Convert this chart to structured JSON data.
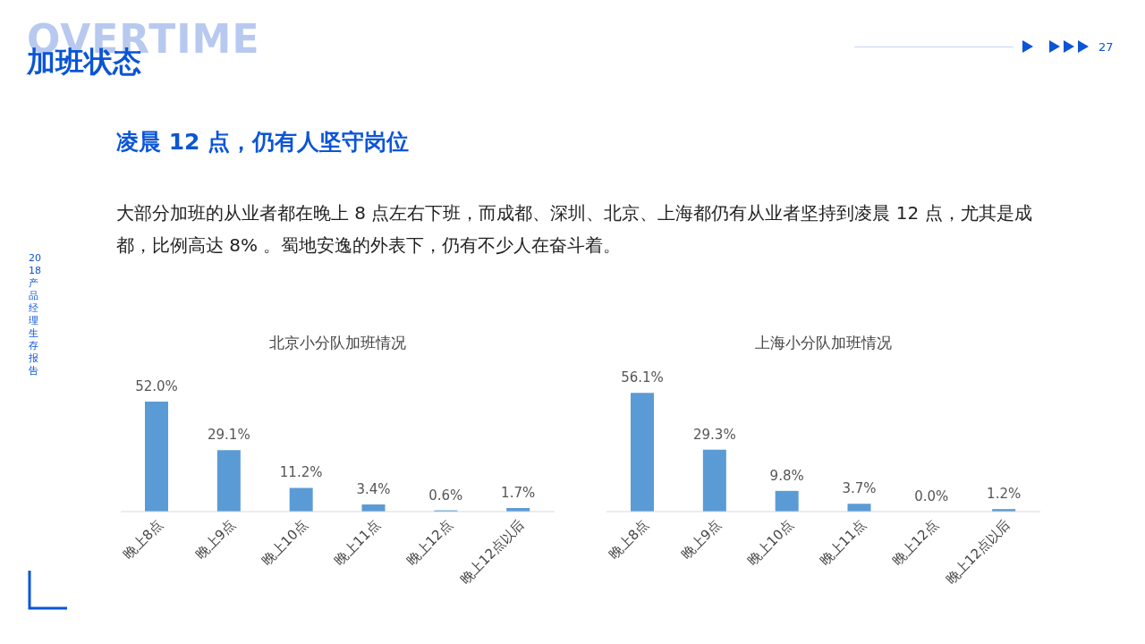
{
  "chart_data": [
    {
      "type": "other",
      "title": "加班状态",
      "subtitle": "凌晨 12 点，仍有人坚守岗位",
      "annotations": [
        "OVERTIME",
        "大部分加班的从业者都在晚上 8 点左右下班，而成都、深圳、北京、上海都仍有从业者坚持到凌晨 12 点，尤其是成都，比例高达 8% 。蜀地安逸的外表下，仍有不少人在奋斗着。",
        "27",
        "2018产品经理生存报告"
      ]
    },
    {
      "type": "bar",
      "title": "北京小分队加班情况",
      "categories": [
        "晚上8点",
        "晚上9点",
        "晚上10点",
        "晚上11点",
        "晚上12点",
        "晚上12点以后"
      ],
      "values": [
        52.0,
        29.1,
        11.2,
        3.4,
        0.6,
        1.7
      ],
      "color": "#5b9bd5",
      "value_labels": [
        "52.0%",
        "29.1%",
        "11.2%",
        "3.4%",
        "0.6%",
        "1.7%"
      ],
      "grid": false,
      "legend": false
    },
    {
      "type": "bar",
      "title": "上海小分队加班情况",
      "categories": [
        "晚上8点",
        "晚上9点",
        "晚上10点",
        "晚上11点",
        "晚上12点",
        "晚上12点以后"
      ],
      "values": [
        56.1,
        29.3,
        9.8,
        3.7,
        0.0,
        1.2
      ],
      "color": "#5b9bd5",
      "value_labels": [
        "56.1%",
        "29.3%",
        "9.8%",
        "3.7%",
        "0.0%",
        "1.2%"
      ],
      "grid": false,
      "legend": false
    }
  ]
}
